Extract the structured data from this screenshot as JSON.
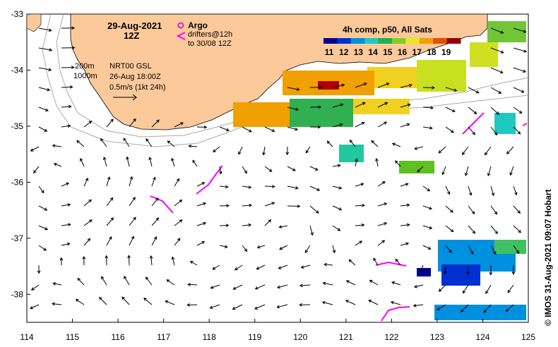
{
  "map": {
    "date": "29-Aug-2021",
    "hour": "12Z",
    "argo_label": "Argo",
    "drifters_label": "drifters@12h",
    "drifters_until": "to 30/08 12Z",
    "isobath_200": "200m",
    "isobath_1000": "1000m",
    "product": "NRT00 GSL",
    "product_time": "26-Aug 18:00Z",
    "velocity_scale": "0.5m/s (1kt 24h)",
    "sst_title": "4h comp, p50, All Sats",
    "credit": "© IMOS 31-Aug-2021 09:07 Hobart",
    "lon_ticks": [
      "114",
      "115",
      "116",
      "117",
      "118",
      "119",
      "120",
      "121",
      "122",
      "123",
      "124",
      "125"
    ],
    "lat_ticks": [
      "-33",
      "-34",
      "-35",
      "-36",
      "-37",
      "-38"
    ],
    "colorbar_ticks": [
      "11",
      "12",
      "13",
      "14",
      "15",
      "16",
      "17",
      "18",
      "19"
    ],
    "colors": {
      "land": "#fbc99a",
      "argo": "#e020e0",
      "drifter": "#ff00ff",
      "sst_scale": [
        "#000090",
        "#0030d0",
        "#0090e0",
        "#20c8c0",
        "#20b050",
        "#80d020",
        "#e8e820",
        "#f0a000",
        "#e05000",
        "#900000"
      ]
    },
    "domain": {
      "lon_min": 114,
      "lon_max": 125,
      "lat_min": -38.5,
      "lat_max": -33
    }
  }
}
